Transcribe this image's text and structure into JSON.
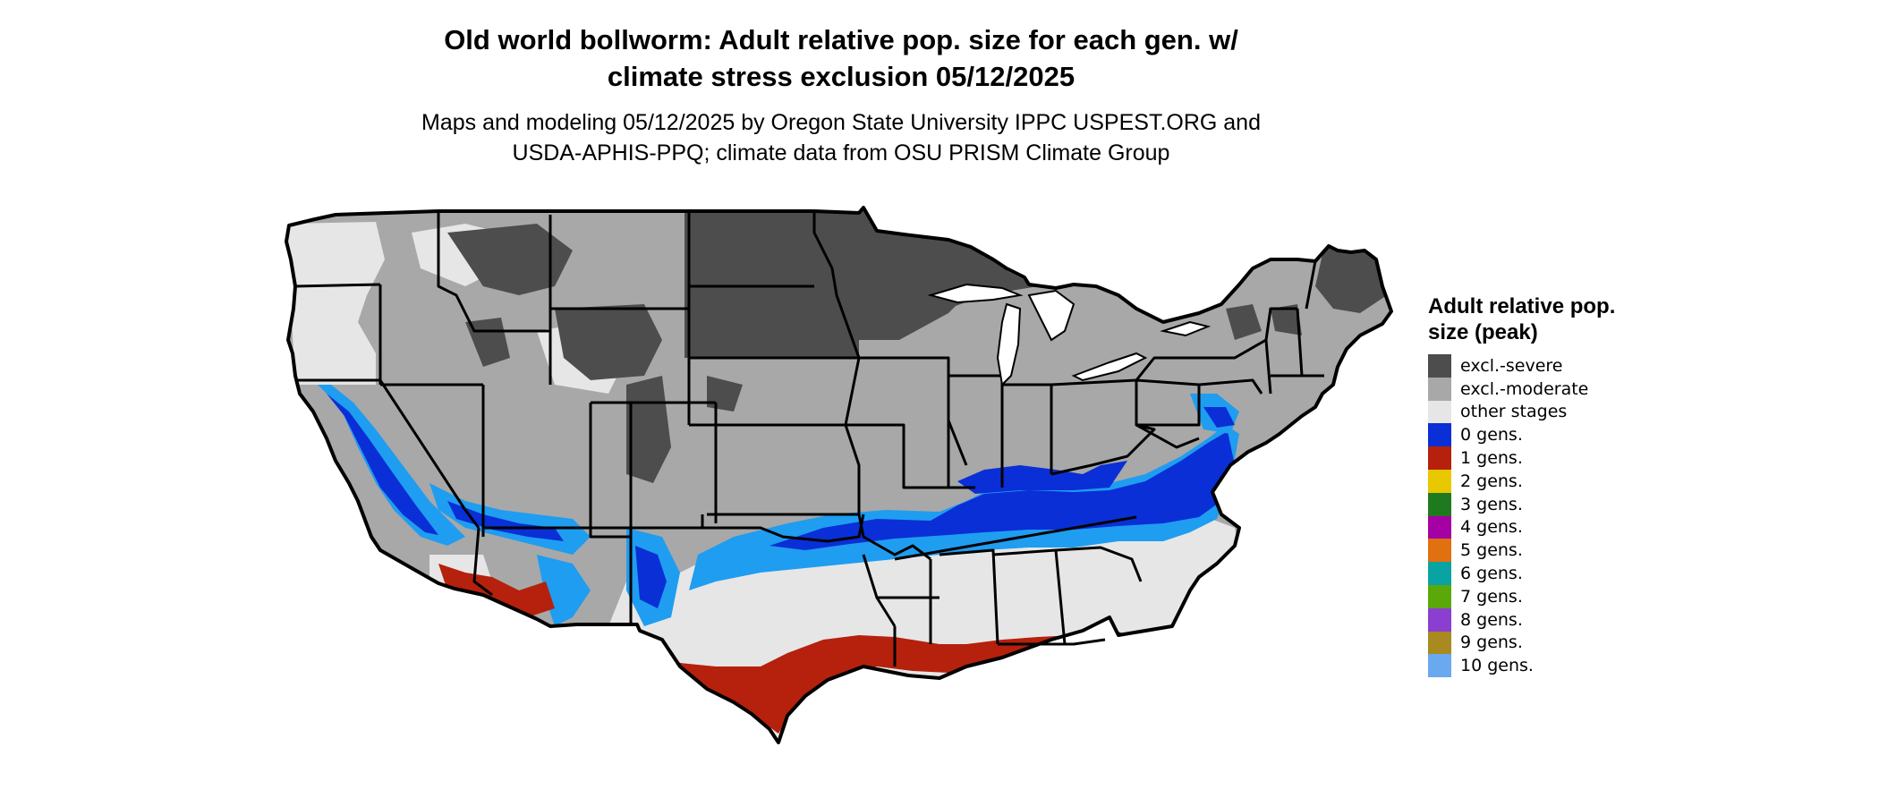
{
  "title_line1": "Old world bollworm: Adult relative pop. size for each gen. w/",
  "title_line2": "climate stress exclusion 05/12/2025",
  "subtitle_line1": "Maps and modeling 05/12/2025 by Oregon State University IPPC USPEST.ORG and",
  "subtitle_line2": "USDA-APHIS-PPQ; climate data from OSU PRISM Climate Group",
  "legend": {
    "title": "Adult relative pop. size (peak)",
    "items": [
      {
        "label": "excl.-severe",
        "color": "#4d4d4d"
      },
      {
        "label": "excl.-moderate",
        "color": "#a8a8a8"
      },
      {
        "label": "other stages",
        "color": "#e6e6e6"
      },
      {
        "label": "0 gens.",
        "color": "#0a2fd6"
      },
      {
        "label": "1 gens.",
        "color": "#b5210c"
      },
      {
        "label": "2 gens.",
        "color": "#e8c800"
      },
      {
        "label": "3 gens.",
        "color": "#1f7a1f"
      },
      {
        "label": "4 gens.",
        "color": "#a400a4"
      },
      {
        "label": "5 gens.",
        "color": "#e07010"
      },
      {
        "label": "6 gens.",
        "color": "#0aa3a3"
      },
      {
        "label": "7 gens.",
        "color": "#5aa80a"
      },
      {
        "label": "8 gens.",
        "color": "#8a3fd1"
      },
      {
        "label": "9 gens.",
        "color": "#a88a20"
      },
      {
        "label": "10 gens.",
        "color": "#6aa8ef"
      }
    ]
  },
  "map": {
    "region": "contiguous-us",
    "colors": {
      "severe": "#4d4d4d",
      "moderate": "#a8a8a8",
      "other": "#e6e6e6",
      "gen0": "#0a2fd6",
      "gen0_light": "#1f9df0",
      "gen1": "#b5210c",
      "gen2": "#e8c800",
      "water": "#ffffff",
      "border": "#000000"
    }
  }
}
